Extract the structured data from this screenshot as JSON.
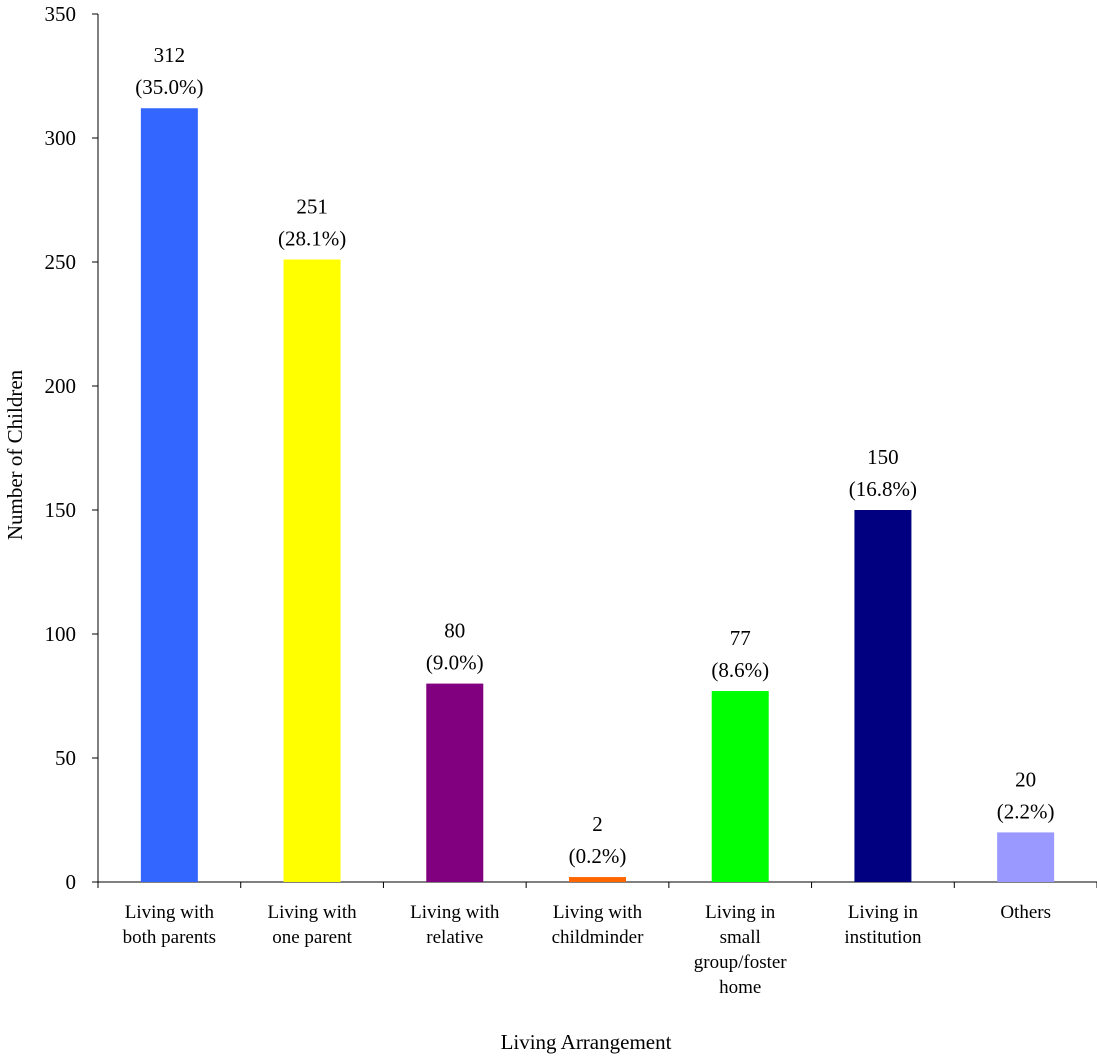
{
  "chart_data": {
    "type": "bar",
    "categories": [
      [
        "Living with",
        "both parents"
      ],
      [
        "Living with",
        "one parent"
      ],
      [
        "Living with",
        "relative"
      ],
      [
        "Living with",
        "childminder"
      ],
      [
        "Living in",
        "small",
        "group/foster",
        "home"
      ],
      [
        "Living in",
        "institution"
      ],
      [
        "Others"
      ]
    ],
    "values": [
      312,
      251,
      80,
      2,
      77,
      150,
      20
    ],
    "percent_labels": [
      "(35.0%)",
      "(28.1%)",
      "(9.0%)",
      "(0.2%)",
      "(8.6%)",
      "(16.8%)",
      "(2.2%)"
    ],
    "colors": [
      "#3366FF",
      "#FFFF00",
      "#800080",
      "#FF6600",
      "#00FF00",
      "#000080",
      "#9999FF"
    ],
    "xlabel": "Living Arrangement",
    "ylabel": "Number of Children",
    "ylim": [
      0,
      350
    ],
    "yticks": [
      0,
      50,
      100,
      150,
      200,
      250,
      300,
      350
    ],
    "grid": false,
    "legend": "none"
  }
}
